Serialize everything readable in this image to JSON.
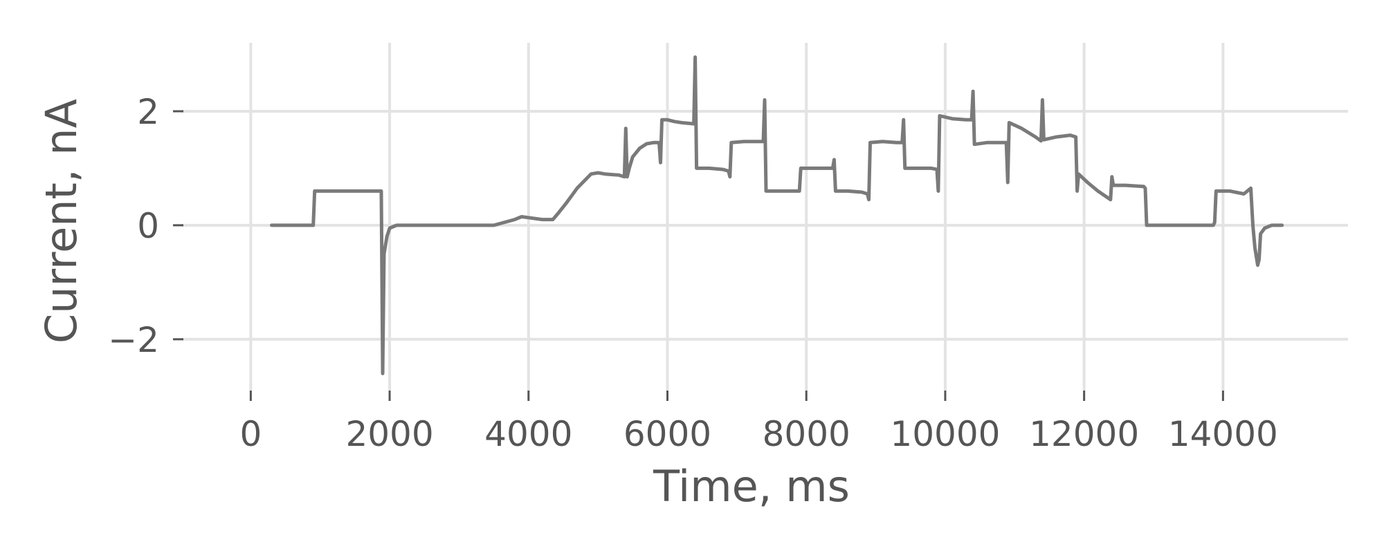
{
  "chart_data": {
    "type": "line",
    "title": "",
    "xlabel": "Time, ms",
    "ylabel": "Current, nA",
    "xlim": [
      -1000,
      15800
    ],
    "ylim": [
      -2.9,
      3.2
    ],
    "xticks": [
      0,
      2000,
      4000,
      6000,
      8000,
      10000,
      12000,
      14000
    ],
    "xtick_labels": [
      "0",
      "2000",
      "4000",
      "6000",
      "8000",
      "10000",
      "12000",
      "14000"
    ],
    "yticks": [
      -2,
      0,
      2
    ],
    "ytick_labels": [
      "−2",
      "0",
      "2"
    ],
    "grid": true,
    "legend": "none",
    "series": [
      {
        "color": "#7a7a7a",
        "x": [
          300,
          900,
          920,
          1800,
          1880,
          1900,
          1920,
          1960,
          2000,
          2100,
          2300,
          3000,
          3500,
          3800,
          3900,
          4200,
          4350,
          4420,
          4550,
          4700,
          4900,
          5000,
          5100,
          5300,
          5380,
          5400,
          5420,
          5450,
          5500,
          5600,
          5700,
          5800,
          5880,
          5900,
          5920,
          6000,
          6100,
          6200,
          6380,
          6400,
          6420,
          6500,
          6600,
          6800,
          6880,
          6900,
          6920,
          7100,
          7300,
          7380,
          7400,
          7420,
          7600,
          7800,
          7880,
          7900,
          7920,
          8100,
          8300,
          8380,
          8400,
          8420,
          8600,
          8800,
          8880,
          8900,
          8920,
          9100,
          9300,
          9380,
          9400,
          9420,
          9600,
          9800,
          9880,
          9900,
          9920,
          10100,
          10300,
          10380,
          10400,
          10420,
          10600,
          10800,
          10880,
          10900,
          10920,
          11100,
          11300,
          11380,
          11400,
          11420,
          11600,
          11800,
          11880,
          11900,
          11920,
          12050,
          12200,
          12380,
          12400,
          12420,
          12600,
          12860,
          12880,
          12900,
          12920,
          13100,
          13500,
          13860,
          13880,
          13900,
          13920,
          14100,
          14300,
          14400,
          14430,
          14460,
          14500,
          14520,
          14540,
          14600,
          14700,
          14850
        ],
        "y": [
          0.0,
          0.0,
          0.6,
          0.6,
          0.6,
          -2.6,
          -0.5,
          -0.2,
          -0.05,
          0.0,
          0.0,
          0.0,
          0.0,
          0.1,
          0.15,
          0.1,
          0.1,
          0.2,
          0.4,
          0.65,
          0.9,
          0.92,
          0.9,
          0.88,
          0.85,
          1.7,
          0.85,
          1.0,
          1.2,
          1.35,
          1.43,
          1.45,
          1.45,
          1.1,
          1.85,
          1.85,
          1.82,
          1.8,
          1.78,
          2.95,
          1.0,
          1.0,
          1.0,
          0.98,
          0.95,
          0.85,
          1.45,
          1.47,
          1.47,
          1.47,
          2.2,
          0.6,
          0.6,
          0.6,
          0.6,
          0.6,
          1.0,
          1.0,
          1.0,
          1.0,
          1.15,
          0.6,
          0.6,
          0.58,
          0.55,
          0.45,
          1.45,
          1.47,
          1.45,
          1.45,
          1.85,
          1.0,
          1.0,
          1.0,
          0.98,
          0.6,
          1.92,
          1.87,
          1.85,
          1.85,
          2.35,
          1.42,
          1.45,
          1.45,
          1.45,
          0.75,
          1.8,
          1.7,
          1.55,
          1.48,
          2.2,
          1.5,
          1.55,
          1.58,
          1.55,
          0.6,
          0.9,
          0.75,
          0.6,
          0.45,
          0.85,
          0.7,
          0.7,
          0.68,
          0.65,
          0.0,
          0.0,
          0.0,
          0.0,
          0.0,
          0.05,
          0.6,
          0.6,
          0.6,
          0.55,
          0.65,
          0.0,
          -0.4,
          -0.7,
          -0.6,
          -0.15,
          -0.05,
          0.0,
          0.0
        ]
      }
    ]
  }
}
